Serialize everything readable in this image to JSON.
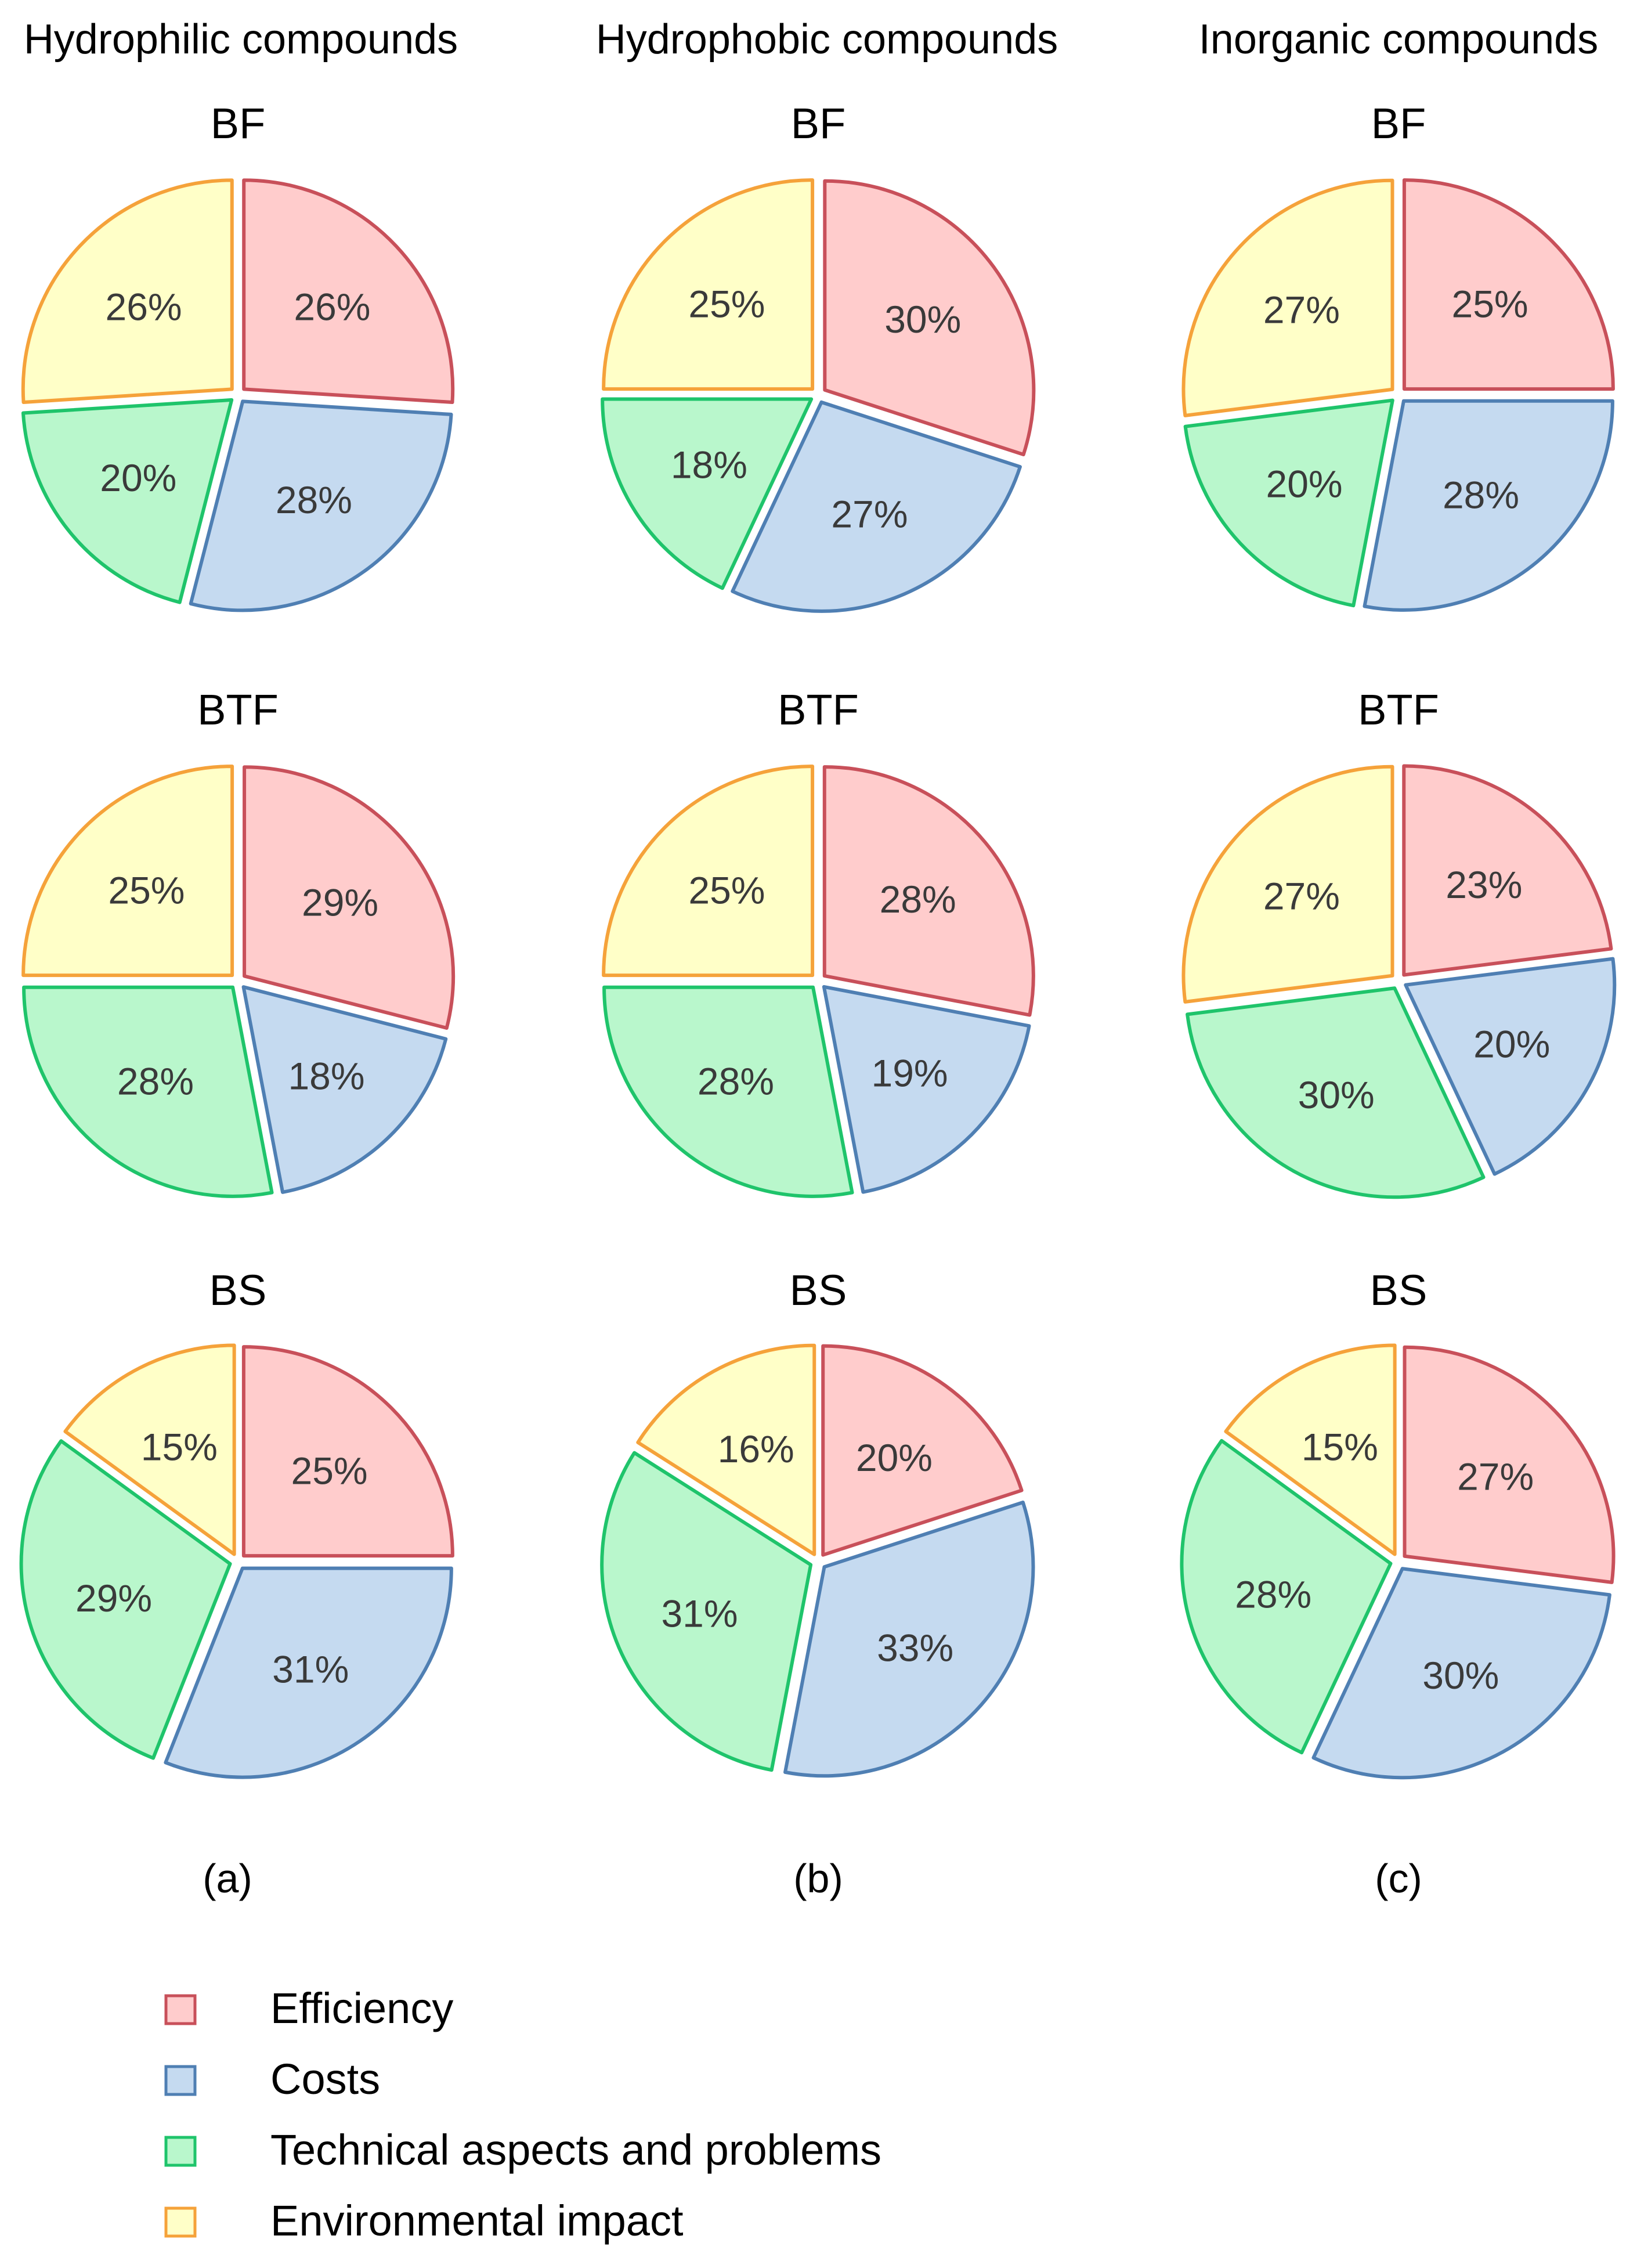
{
  "legend": {
    "items": [
      {
        "label": "Efficiency",
        "fill": "#ffcccc",
        "stroke": "#c8505a"
      },
      {
        "label": "Costs",
        "fill": "#c5daf0",
        "stroke": "#4f7fb3"
      },
      {
        "label": "Technical aspects and problems",
        "fill": "#b9f7cc",
        "stroke": "#1fc46b"
      },
      {
        "label": "Environmental impact",
        "fill": "#ffffc8",
        "stroke": "#f5a23a"
      }
    ]
  },
  "chart_data": [
    {
      "type": "pie",
      "column_title": "Hydrophilic compounds",
      "panel_label": "(a)",
      "pies": [
        {
          "title": "BF",
          "categories": [
            "Efficiency",
            "Costs",
            "Technical aspects and problems",
            "Environmental impact"
          ],
          "values": [
            26,
            28,
            20,
            26
          ],
          "labels": [
            "26%",
            "28%",
            "20%",
            "26%"
          ]
        },
        {
          "title": "BTF",
          "categories": [
            "Efficiency",
            "Costs",
            "Technical aspects and problems",
            "Environmental impact"
          ],
          "values": [
            29,
            18,
            28,
            25
          ],
          "labels": [
            "29%",
            "18%",
            "28%",
            "25%"
          ]
        },
        {
          "title": "BS",
          "categories": [
            "Efficiency",
            "Costs",
            "Technical aspects and problems",
            "Environmental impact"
          ],
          "values": [
            25,
            31,
            29,
            15
          ],
          "labels": [
            "25%",
            "31%",
            "29%",
            "15%"
          ]
        }
      ]
    },
    {
      "type": "pie",
      "column_title": "Hydrophobic compounds",
      "panel_label": "(b)",
      "pies": [
        {
          "title": "BF",
          "categories": [
            "Efficiency",
            "Costs",
            "Technical aspects and problems",
            "Environmental impact"
          ],
          "values": [
            30,
            27,
            18,
            25
          ],
          "labels": [
            "30%",
            "27%",
            "18%",
            "25%"
          ]
        },
        {
          "title": "BTF",
          "categories": [
            "Efficiency",
            "Costs",
            "Technical aspects and problems",
            "Environmental impact"
          ],
          "values": [
            28,
            19,
            28,
            25
          ],
          "labels": [
            "28%",
            "19%",
            "28%",
            "25%"
          ]
        },
        {
          "title": "BS",
          "categories": [
            "Efficiency",
            "Costs",
            "Technical aspects and problems",
            "Environmental impact"
          ],
          "values": [
            20,
            33,
            31,
            16
          ],
          "labels": [
            "20%",
            "33%",
            "31%",
            "16%"
          ]
        }
      ]
    },
    {
      "type": "pie",
      "column_title": "Inorganic compounds",
      "panel_label": "(c)",
      "pies": [
        {
          "title": "BF",
          "categories": [
            "Efficiency",
            "Costs",
            "Technical aspects and problems",
            "Environmental impact"
          ],
          "values": [
            25,
            28,
            20,
            27
          ],
          "labels": [
            "25%",
            "28%",
            "20%",
            "27%"
          ]
        },
        {
          "title": "BTF",
          "categories": [
            "Efficiency",
            "Costs",
            "Technical aspects and problems",
            "Environmental impact"
          ],
          "values": [
            23,
            20,
            30,
            27
          ],
          "labels": [
            "23%",
            "20%",
            "30%",
            "27%"
          ]
        },
        {
          "title": "BS",
          "categories": [
            "Efficiency",
            "Costs",
            "Technical aspects and problems",
            "Environmental impact"
          ],
          "values": [
            27,
            30,
            28,
            15
          ],
          "labels": [
            "27%",
            "30%",
            "28%",
            "15%"
          ]
        }
      ]
    }
  ]
}
